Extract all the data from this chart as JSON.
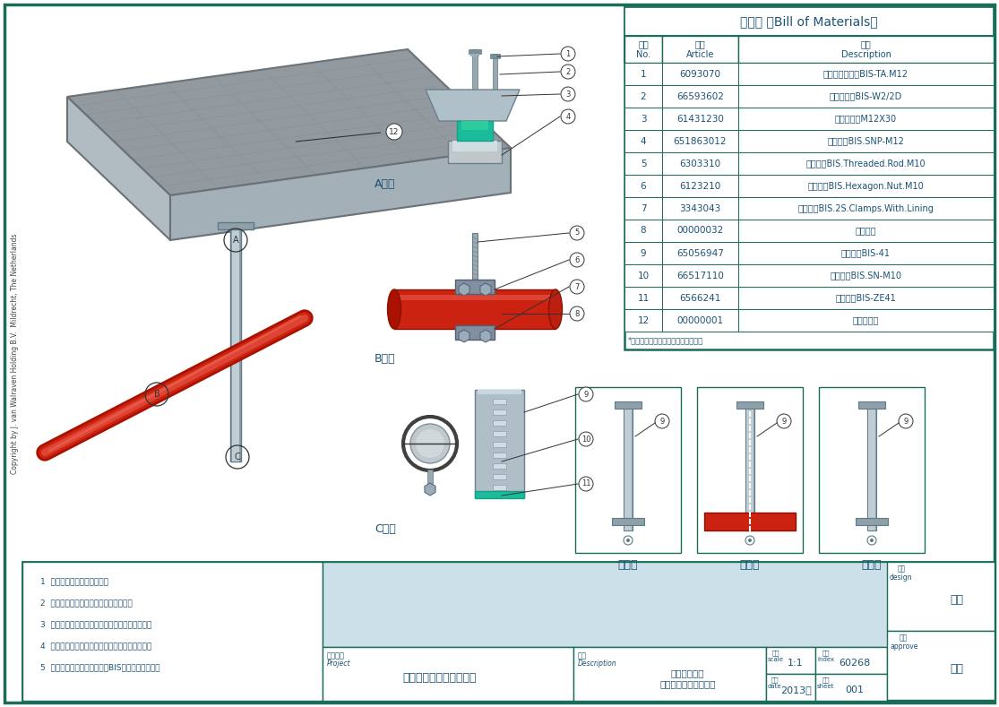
{
  "title_bom": "材料表 〈Bill of Materials〉",
  "bom_rows": [
    [
      "1",
      "6093070",
      "贯穿式膨胀锚栓BIS-TA.M12"
    ],
    [
      "2",
      "66593602",
      "二维连接件BIS-W2/2D"
    ],
    [
      "3",
      "61431230",
      "外六角螺栓M12X30"
    ],
    [
      "4",
      "651863012",
      "槽钢锁扣BIS.SNP-M12"
    ],
    [
      "5",
      "6303310",
      "全牙螺杆BIS.Threaded.Rod.M10"
    ],
    [
      "6",
      "6123210",
      "法兰螺母BIS.Hexagon.Nut.M10"
    ],
    [
      "7",
      "3343043",
      "轻型管束BIS.2S.Clamps.With.Lining"
    ],
    [
      "8",
      "00000032",
      "喷淋支管"
    ],
    [
      "9",
      "65056947",
      "单面槽钢BIS-41"
    ],
    [
      "10",
      "66517110",
      "管束扣垫BIS.SN-M10"
    ],
    [
      "11",
      "6566241",
      "槽钢端盖BIS-ZE41"
    ],
    [
      "12",
      "00000001",
      "混凝土楼板"
    ]
  ],
  "bom_note": "*更多信息请参考沃雷文最新产品目录",
  "notes": [
    "1  数据和设计以实际工况为准",
    "2  计算和数据必须有相关检测数据为依据",
    "3  设计和计算必须参考当地的建筑规范和建筑法规",
    "4  沃雷文以负责任的态度进行设计和产品材料选型",
    "5  所有的计算和数据以沃雷文BIS成品支架系统为准"
  ],
  "copyright_text": "Copyright by J. van Walraven Holding B.V.  Mildrecht, The Netherlands",
  "project_name": "消防系统支架的安装方法",
  "description_value": "喷淋支管末端\n在混凝土楼板下的安装",
  "scale_value": "1:1",
  "index_value": "60268",
  "date_value": "2013年",
  "sheet_value": "001",
  "design_value": "唐金",
  "approve_value": "彭飞",
  "border_color": "#1a6b5a",
  "text_blue": "#1a5276",
  "slab_top_color": "#9aa3a8",
  "slab_front_color": "#b2bec3",
  "slab_right_color": "#a8b4ba",
  "pipe_color": "#cc2211",
  "pipe_highlight": "#dd4433",
  "steel_color": "#8fa0aa",
  "steel_light": "#c0cdd4",
  "bg_main": "#dce8ef"
}
